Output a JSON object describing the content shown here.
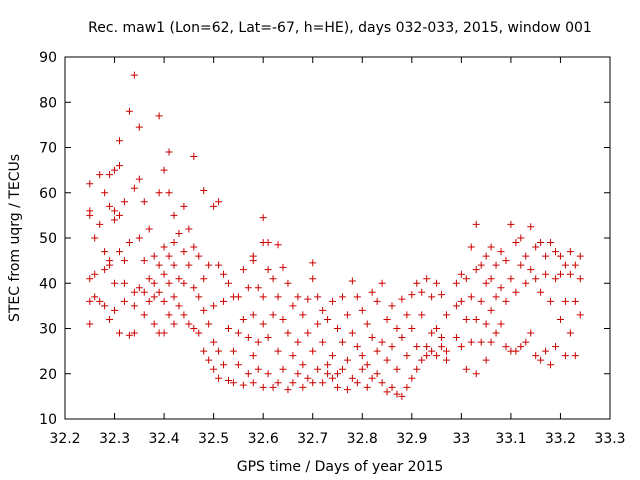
{
  "chart_data": {
    "type": "scatter",
    "title": "Rec. maw1 (Lon=62, Lat=-67, h=HE), days 032-033, 2015, window 001",
    "xlabel": "GPS time / Days of year 2015",
    "ylabel": "STEC from uqrg / TECUs",
    "xlim": [
      32.2,
      33.3
    ],
    "ylim": [
      10,
      90
    ],
    "xticks": [
      "32.2",
      "32.3",
      "32.4",
      "32.5",
      "32.6",
      "32.7",
      "32.8",
      "32.9",
      "33",
      "33.1",
      "33.2",
      "33.3"
    ],
    "yticks": [
      "10",
      "20",
      "30",
      "40",
      "50",
      "60",
      "70",
      "80",
      "90"
    ],
    "grid": false,
    "marker": "plus",
    "color": "#cc0000",
    "points": [
      [
        32.25,
        62
      ],
      [
        32.25,
        56
      ],
      [
        32.25,
        55
      ],
      [
        32.26,
        50
      ],
      [
        32.25,
        41
      ],
      [
        32.26,
        42
      ],
      [
        32.25,
        36
      ],
      [
        32.26,
        37
      ],
      [
        32.25,
        31
      ],
      [
        32.27,
        53
      ],
      [
        32.27,
        64
      ],
      [
        32.28,
        60
      ],
      [
        32.28,
        47
      ],
      [
        32.28,
        43
      ],
      [
        32.27,
        36
      ],
      [
        32.28,
        35
      ],
      [
        32.29,
        64
      ],
      [
        32.29,
        57
      ],
      [
        32.29,
        45
      ],
      [
        32.29,
        44
      ],
      [
        32.29,
        32
      ],
      [
        32.3,
        65
      ],
      [
        32.3,
        56
      ],
      [
        32.3,
        54
      ],
      [
        32.3,
        40
      ],
      [
        32.3,
        34
      ],
      [
        32.31,
        66
      ],
      [
        32.31,
        71.5
      ],
      [
        32.31,
        55
      ],
      [
        32.31,
        47
      ],
      [
        32.31,
        29
      ],
      [
        32.32,
        58
      ],
      [
        32.32,
        45
      ],
      [
        32.32,
        40
      ],
      [
        32.32,
        36
      ],
      [
        32.33,
        78
      ],
      [
        32.33,
        49
      ],
      [
        32.33,
        28.5
      ],
      [
        32.34,
        86
      ],
      [
        32.34,
        61
      ],
      [
        32.34,
        38
      ],
      [
        32.34,
        35
      ],
      [
        32.34,
        29
      ],
      [
        32.35,
        74.5
      ],
      [
        32.35,
        63
      ],
      [
        32.35,
        50
      ],
      [
        32.35,
        39
      ],
      [
        32.36,
        58
      ],
      [
        32.36,
        45
      ],
      [
        32.36,
        38
      ],
      [
        32.36,
        33
      ],
      [
        32.37,
        52
      ],
      [
        32.37,
        41
      ],
      [
        32.37,
        36
      ],
      [
        32.38,
        46
      ],
      [
        32.38,
        40
      ],
      [
        32.38,
        37
      ],
      [
        32.38,
        31
      ],
      [
        32.39,
        77
      ],
      [
        32.39,
        60
      ],
      [
        32.39,
        44
      ],
      [
        32.39,
        38
      ],
      [
        32.39,
        29
      ],
      [
        32.4,
        65
      ],
      [
        32.4,
        48
      ],
      [
        32.4,
        42
      ],
      [
        32.4,
        36
      ],
      [
        32.4,
        29
      ],
      [
        32.41,
        69
      ],
      [
        32.41,
        60
      ],
      [
        32.41,
        46
      ],
      [
        32.41,
        40
      ],
      [
        32.41,
        33
      ],
      [
        32.42,
        55
      ],
      [
        32.42,
        49
      ],
      [
        32.42,
        44
      ],
      [
        32.42,
        37
      ],
      [
        32.42,
        31
      ],
      [
        32.43,
        51
      ],
      [
        32.43,
        41
      ],
      [
        32.43,
        35
      ],
      [
        32.44,
        57
      ],
      [
        32.44,
        47
      ],
      [
        32.44,
        40
      ],
      [
        32.44,
        33
      ],
      [
        32.45,
        52
      ],
      [
        32.45,
        44
      ],
      [
        32.45,
        31
      ],
      [
        32.46,
        68
      ],
      [
        32.46,
        48
      ],
      [
        32.46,
        39
      ],
      [
        32.46,
        30
      ],
      [
        32.47,
        46
      ],
      [
        32.47,
        37
      ],
      [
        32.47,
        29
      ],
      [
        32.48,
        60.5
      ],
      [
        32.48,
        41
      ],
      [
        32.48,
        34
      ],
      [
        32.48,
        25
      ],
      [
        32.49,
        44
      ],
      [
        32.49,
        31
      ],
      [
        32.49,
        23
      ],
      [
        32.5,
        57
      ],
      [
        32.5,
        35
      ],
      [
        32.5,
        27
      ],
      [
        32.5,
        21
      ],
      [
        32.51,
        58
      ],
      [
        32.51,
        44
      ],
      [
        32.51,
        25
      ],
      [
        32.51,
        19
      ],
      [
        32.52,
        42
      ],
      [
        32.52,
        36
      ],
      [
        32.52,
        22
      ],
      [
        32.53,
        40
      ],
      [
        32.53,
        30
      ],
      [
        32.53,
        18.5
      ],
      [
        32.54,
        37
      ],
      [
        32.54,
        25
      ],
      [
        32.54,
        18
      ],
      [
        32.55,
        37
      ],
      [
        32.55,
        29
      ],
      [
        32.55,
        22
      ],
      [
        32.56,
        43
      ],
      [
        32.56,
        32
      ],
      [
        32.56,
        17.5
      ],
      [
        32.57,
        39
      ],
      [
        32.57,
        28
      ],
      [
        32.57,
        20
      ],
      [
        32.58,
        46
      ],
      [
        32.58,
        45
      ],
      [
        32.58,
        33
      ],
      [
        32.58,
        24
      ],
      [
        32.58,
        18
      ],
      [
        32.59,
        39
      ],
      [
        32.59,
        27
      ],
      [
        32.59,
        21
      ],
      [
        32.6,
        54.5
      ],
      [
        32.6,
        49
      ],
      [
        32.6,
        37
      ],
      [
        32.6,
        31
      ],
      [
        32.6,
        17
      ],
      [
        32.61,
        49
      ],
      [
        32.61,
        43
      ],
      [
        32.61,
        28
      ],
      [
        32.61,
        20
      ],
      [
        32.62,
        41
      ],
      [
        32.62,
        33
      ],
      [
        32.62,
        17
      ],
      [
        32.63,
        48.5
      ],
      [
        32.63,
        37
      ],
      [
        32.63,
        25
      ],
      [
        32.63,
        18
      ],
      [
        32.64,
        43.5
      ],
      [
        32.64,
        32
      ],
      [
        32.64,
        21
      ],
      [
        32.65,
        40
      ],
      [
        32.65,
        29
      ],
      [
        32.65,
        16.5
      ],
      [
        32.66,
        35
      ],
      [
        32.66,
        24
      ],
      [
        32.66,
        18
      ],
      [
        32.67,
        37
      ],
      [
        32.67,
        27
      ],
      [
        32.67,
        20
      ],
      [
        32.68,
        33
      ],
      [
        32.68,
        22
      ],
      [
        32.68,
        17
      ],
      [
        32.69,
        36.5
      ],
      [
        32.69,
        29
      ],
      [
        32.69,
        19
      ],
      [
        32.7,
        44.5
      ],
      [
        32.7,
        41
      ],
      [
        32.7,
        25
      ],
      [
        32.7,
        18
      ],
      [
        32.71,
        37
      ],
      [
        32.71,
        31
      ],
      [
        32.71,
        21
      ],
      [
        32.72,
        34
      ],
      [
        32.72,
        27
      ],
      [
        32.72,
        18
      ],
      [
        32.73,
        32
      ],
      [
        32.73,
        22
      ],
      [
        32.73,
        20
      ],
      [
        32.74,
        36
      ],
      [
        32.74,
        24
      ],
      [
        32.74,
        19
      ],
      [
        32.75,
        30
      ],
      [
        32.75,
        20
      ],
      [
        32.75,
        17
      ],
      [
        32.76,
        37
      ],
      [
        32.76,
        27
      ],
      [
        32.76,
        21
      ],
      [
        32.77,
        33
      ],
      [
        32.77,
        23
      ],
      [
        32.77,
        16.5
      ],
      [
        32.78,
        40.5
      ],
      [
        32.78,
        29
      ],
      [
        32.78,
        19
      ],
      [
        32.79,
        37
      ],
      [
        32.79,
        26
      ],
      [
        32.79,
        18
      ],
      [
        32.8,
        34
      ],
      [
        32.8,
        24
      ],
      [
        32.8,
        21
      ],
      [
        32.81,
        31
      ],
      [
        32.81,
        22
      ],
      [
        32.81,
        17
      ],
      [
        32.82,
        38
      ],
      [
        32.82,
        28
      ],
      [
        32.82,
        19
      ],
      [
        32.83,
        36
      ],
      [
        32.83,
        25
      ],
      [
        32.83,
        20
      ],
      [
        32.84,
        40
      ],
      [
        32.84,
        27
      ],
      [
        32.84,
        18
      ],
      [
        32.85,
        32
      ],
      [
        32.85,
        23
      ],
      [
        32.85,
        16
      ],
      [
        32.86,
        35
      ],
      [
        32.86,
        26
      ],
      [
        32.86,
        17
      ],
      [
        32.87,
        30
      ],
      [
        32.87,
        21
      ],
      [
        32.87,
        15.5
      ],
      [
        32.88,
        36.5
      ],
      [
        32.88,
        28
      ],
      [
        32.88,
        15
      ],
      [
        32.89,
        33
      ],
      [
        32.89,
        24
      ],
      [
        32.89,
        17
      ],
      [
        32.9,
        37.5
      ],
      [
        32.9,
        30
      ],
      [
        32.9,
        19
      ],
      [
        32.91,
        40
      ],
      [
        32.91,
        26
      ],
      [
        32.91,
        21
      ],
      [
        32.92,
        38
      ],
      [
        32.92,
        33
      ],
      [
        32.92,
        23
      ],
      [
        32.93,
        41
      ],
      [
        32.93,
        26
      ],
      [
        32.93,
        24
      ],
      [
        32.94,
        37
      ],
      [
        32.94,
        29
      ],
      [
        32.94,
        25
      ],
      [
        32.95,
        40
      ],
      [
        32.95,
        30
      ],
      [
        32.95,
        24
      ],
      [
        32.96,
        37.5
      ],
      [
        32.96,
        28
      ],
      [
        32.96,
        26
      ],
      [
        32.97,
        33
      ],
      [
        32.97,
        25
      ],
      [
        32.97,
        23
      ],
      [
        32.99,
        40
      ],
      [
        32.99,
        35
      ],
      [
        32.99,
        28
      ],
      [
        33.0,
        42
      ],
      [
        33.0,
        36
      ],
      [
        33.0,
        26
      ],
      [
        33.01,
        41
      ],
      [
        33.01,
        32
      ],
      [
        33.01,
        21
      ],
      [
        33.02,
        48
      ],
      [
        33.02,
        37
      ],
      [
        33.02,
        27
      ],
      [
        33.03,
        53
      ],
      [
        33.03,
        43
      ],
      [
        33.03,
        32
      ],
      [
        33.03,
        20
      ],
      [
        33.04,
        44
      ],
      [
        33.04,
        36
      ],
      [
        33.04,
        27
      ],
      [
        33.05,
        46
      ],
      [
        33.05,
        40
      ],
      [
        33.05,
        31
      ],
      [
        33.05,
        23
      ],
      [
        33.06,
        48
      ],
      [
        33.06,
        41
      ],
      [
        33.06,
        34
      ],
      [
        33.06,
        27
      ],
      [
        33.07,
        44
      ],
      [
        33.07,
        37
      ],
      [
        33.07,
        29
      ],
      [
        33.08,
        47
      ],
      [
        33.08,
        39
      ],
      [
        33.08,
        31
      ],
      [
        33.09,
        45
      ],
      [
        33.09,
        36
      ],
      [
        33.09,
        26
      ],
      [
        33.1,
        53
      ],
      [
        33.1,
        41
      ],
      [
        33.1,
        25
      ],
      [
        33.11,
        49
      ],
      [
        33.11,
        38
      ],
      [
        33.11,
        25
      ],
      [
        33.12,
        50
      ],
      [
        33.12,
        44
      ],
      [
        33.12,
        26
      ],
      [
        33.13,
        46
      ],
      [
        33.13,
        40
      ],
      [
        33.13,
        27
      ],
      [
        33.14,
        52.5
      ],
      [
        33.14,
        43
      ],
      [
        33.14,
        29
      ],
      [
        33.15,
        48
      ],
      [
        33.15,
        41
      ],
      [
        33.15,
        24
      ],
      [
        33.16,
        49
      ],
      [
        33.16,
        38
      ],
      [
        33.16,
        23
      ],
      [
        33.17,
        46
      ],
      [
        33.17,
        42
      ],
      [
        33.17,
        25
      ],
      [
        33.18,
        49
      ],
      [
        33.18,
        36
      ],
      [
        33.18,
        22
      ],
      [
        33.19,
        47
      ],
      [
        33.19,
        41
      ],
      [
        33.19,
        26
      ],
      [
        33.2,
        46
      ],
      [
        33.2,
        42
      ],
      [
        33.2,
        32
      ],
      [
        33.21,
        44
      ],
      [
        33.21,
        36
      ],
      [
        33.21,
        24
      ],
      [
        33.22,
        47
      ],
      [
        33.22,
        42
      ],
      [
        33.22,
        29
      ],
      [
        33.23,
        44
      ],
      [
        33.23,
        36
      ],
      [
        33.23,
        24
      ],
      [
        33.24,
        46
      ],
      [
        33.24,
        41
      ],
      [
        33.24,
        33
      ]
    ]
  }
}
